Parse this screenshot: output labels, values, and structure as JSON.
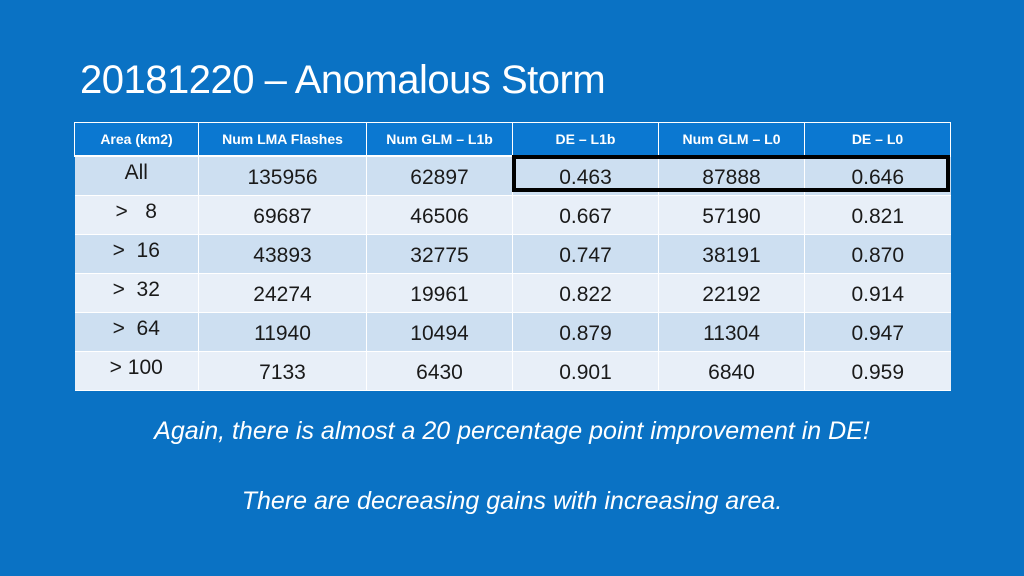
{
  "slide": {
    "title": "20181220 – Anomalous Storm",
    "caption_1": "Again, there is almost a 20 percentage point improvement in DE!",
    "caption_2": "There are decreasing gains with increasing area."
  },
  "table": {
    "headers": [
      "Area (km2)",
      "Num LMA Flashes",
      "Num GLM – L1b",
      "DE – L1b",
      "Num GLM – L0",
      "DE – L0"
    ],
    "rows": [
      [
        "All",
        "135956",
        "62897",
        "0.463",
        "87888",
        "0.646"
      ],
      [
        ">   8",
        "69687",
        "46506",
        "0.667",
        "57190",
        "0.821"
      ],
      [
        ">  16",
        "43893",
        "32775",
        "0.747",
        "38191",
        "0.870"
      ],
      [
        ">  32",
        "24274",
        "19961",
        "0.822",
        "22192",
        "0.914"
      ],
      [
        ">  64",
        "11940",
        "10494",
        "0.879",
        "11304",
        "0.947"
      ],
      [
        "> 100",
        "7133",
        "6430",
        "0.901",
        "6840",
        "0.959"
      ]
    ]
  },
  "colors": {
    "background": "#0a72c4",
    "header_fill": "#0b78d1",
    "row_odd": "#cddff1",
    "row_even": "#e8eff8",
    "highlight_border": "#000000"
  }
}
